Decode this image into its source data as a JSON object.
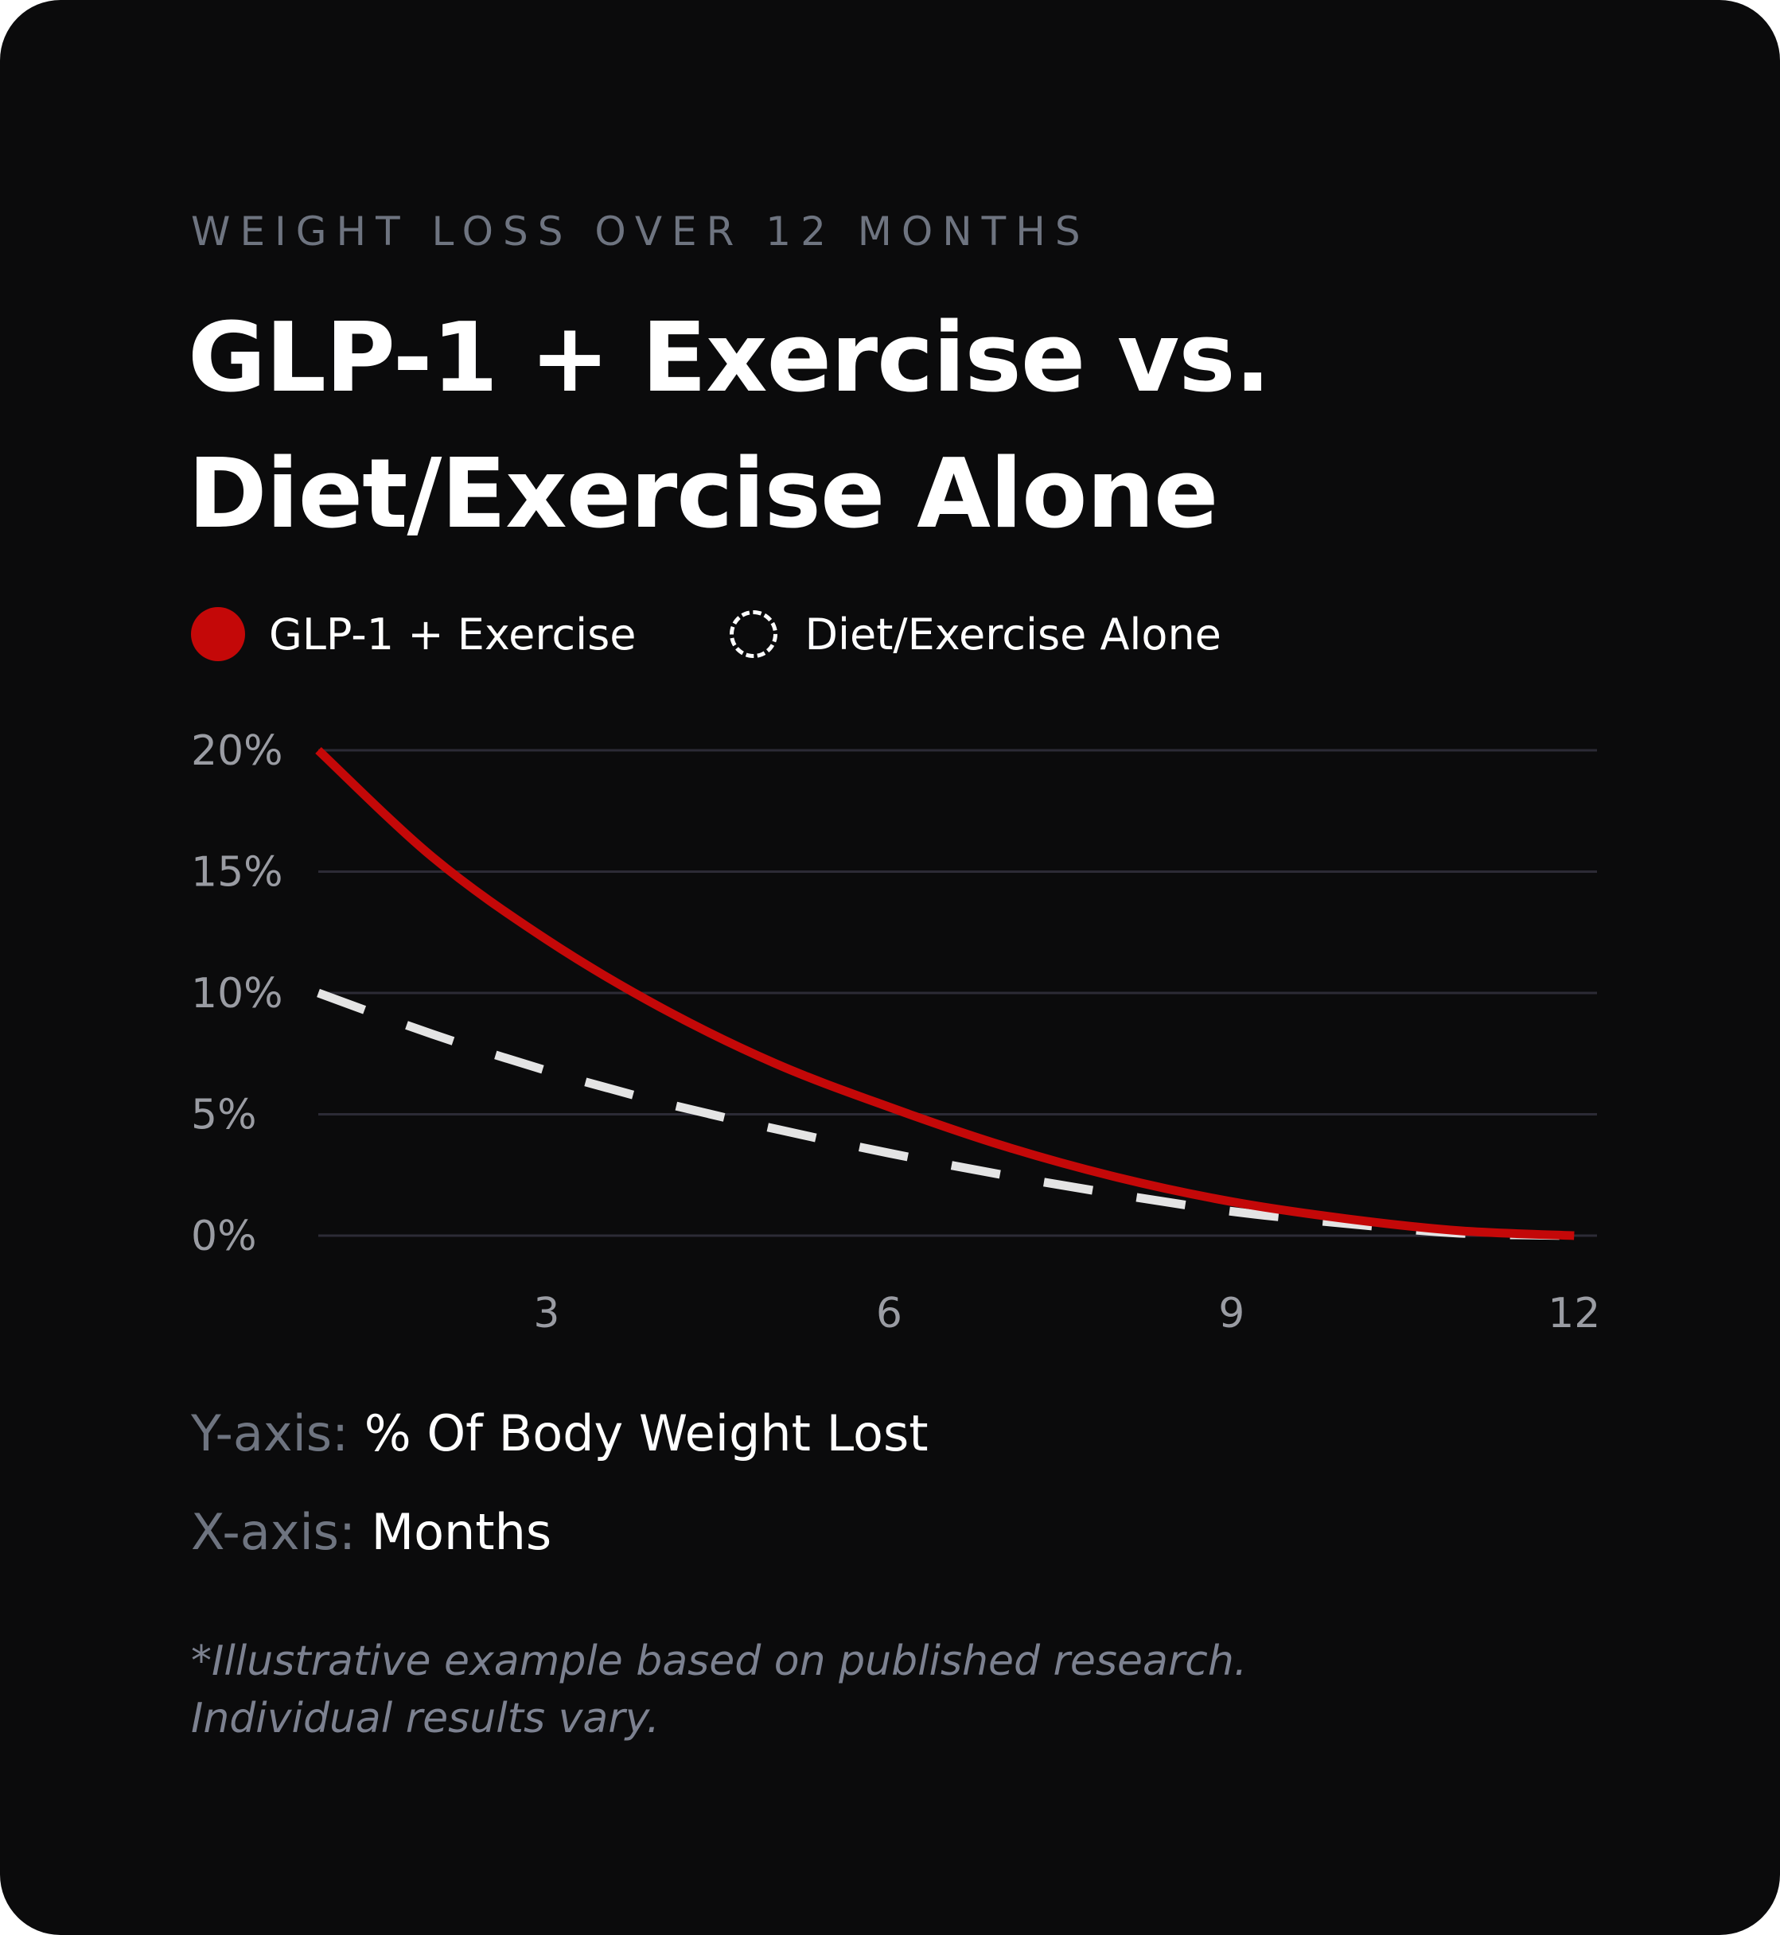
{
  "eyebrow": "WEIGHT LOSS OVER 12 MONTHS",
  "title": {
    "line1": "GLP-1 + Exercise vs.",
    "line2": "Diet/Exercise Alone"
  },
  "legend": [
    {
      "label": "GLP-1 + Exercise",
      "style": "solid-circle",
      "color": "#c40808"
    },
    {
      "label": "Diet/Exercise Alone",
      "style": "dashed-circle",
      "color": "#ffffff"
    }
  ],
  "captions": {
    "y_key": "Y-axis:",
    "y_value": "% Of Body Weight Lost",
    "x_key": "X-axis:",
    "x_value": "Months"
  },
  "footnote": {
    "line1": "*Illustrative example based on published research.",
    "line2": "Individual results vary."
  },
  "colors": {
    "background": "#0b0b0c",
    "glp1": "#c40808",
    "diet": "#e4e4e4",
    "grid": "#2c2b36",
    "muted_text": "#6e7480",
    "tick_text": "#9a9ca3"
  },
  "chart_data": {
    "type": "line",
    "title": "GLP-1 + Exercise vs. Diet/Exercise Alone",
    "subtitle": "WEIGHT LOSS OVER 12 MONTHS",
    "xlabel": "Months",
    "ylabel": "% Of Body Weight Lost",
    "xlim": [
      1,
      12.2
    ],
    "ylim": [
      0,
      20
    ],
    "x_ticks": [
      3,
      6,
      9,
      12
    ],
    "x_tick_labels": [
      "3",
      "6",
      "9",
      "12"
    ],
    "y_ticks": [
      0,
      5,
      10,
      15,
      20
    ],
    "y_tick_labels": [
      "0%",
      "5%",
      "10%",
      "15%",
      "20%"
    ],
    "grid": "horizontal",
    "legend_position": "top-left",
    "series": [
      {
        "name": "GLP-1 + Exercise",
        "style": "solid",
        "x": [
          1,
          2,
          3,
          4,
          5,
          6,
          7,
          8,
          9,
          10,
          11,
          12
        ],
        "values": [
          20.0,
          15.6,
          12.2,
          9.4,
          7.1,
          5.3,
          3.7,
          2.4,
          1.4,
          0.7,
          0.2,
          0.0
        ]
      },
      {
        "name": "Diet/Exercise Alone",
        "style": "dashed",
        "x": [
          1,
          2,
          3,
          4,
          5,
          6,
          7,
          8,
          9,
          10,
          11,
          12
        ],
        "values": [
          10.0,
          8.3,
          6.8,
          5.5,
          4.4,
          3.4,
          2.5,
          1.7,
          1.0,
          0.5,
          0.1,
          0.0
        ]
      }
    ]
  }
}
